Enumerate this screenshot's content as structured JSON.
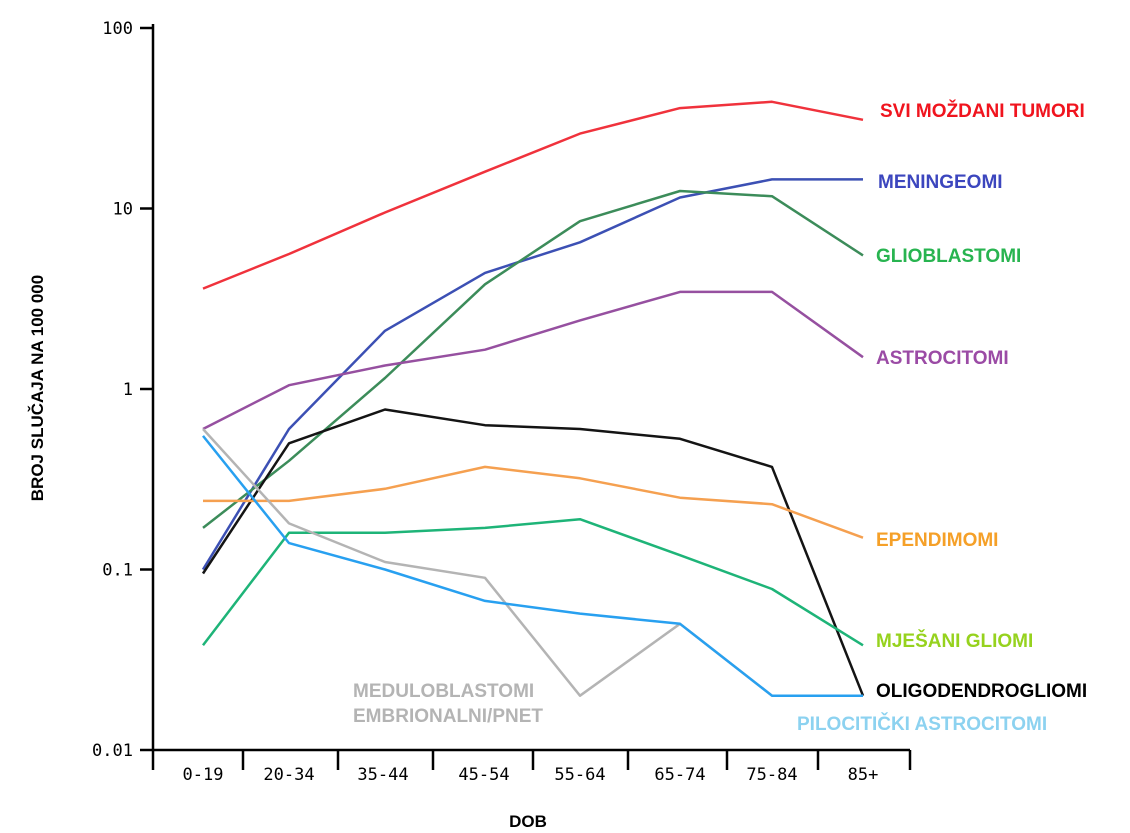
{
  "chart_data": {
    "type": "line",
    "xlabel": "DOB",
    "ylabel": "BROJ SLUČAJA NA 100 000",
    "yscale": "log",
    "ylim": [
      0.01,
      100
    ],
    "yticks": [
      "100",
      "10",
      "1",
      "0.1",
      "0.01"
    ],
    "ytick_values": [
      100,
      10,
      1,
      0.1,
      0.01
    ],
    "categories": [
      "0-19",
      "20-34",
      "35-44",
      "45-54",
      "55-64",
      "65-74",
      "75-84",
      "85+"
    ],
    "grid": false,
    "series": [
      {
        "name": "SVI MOŽDANI TUMORI",
        "color": "#f0323c",
        "label_color": "#f0141e",
        "values": [
          3.6,
          5.6,
          9.5,
          16,
          26,
          36,
          39,
          31
        ]
      },
      {
        "name": "MENINGEOMI",
        "color": "#3c50b4",
        "label_color": "#3c46be",
        "values": [
          0.1,
          0.6,
          2.1,
          4.4,
          6.5,
          11.5,
          14.5,
          14.5
        ]
      },
      {
        "name": "GLIOBLASTOMI",
        "color": "#3c8c5a",
        "label_color": "#28b450",
        "values": [
          0.17,
          0.4,
          1.15,
          3.8,
          8.5,
          12.5,
          11.7,
          5.5
        ]
      },
      {
        "name": "ASTROCITOMI",
        "color": "#9650a0",
        "label_color": "#9b4ba5",
        "values": [
          0.6,
          1.05,
          1.35,
          1.65,
          2.4,
          3.45,
          3.45,
          1.5
        ]
      },
      {
        "name": "OLIGODENDROGLIOMI",
        "color": "#141414",
        "label_color": "#000000",
        "values": [
          0.095,
          0.5,
          0.77,
          0.63,
          0.6,
          0.53,
          0.37,
          0.02
        ]
      },
      {
        "name": "EPENDIMOMI",
        "color": "#f5a050",
        "label_color": "#f5a028",
        "values": [
          0.24,
          0.24,
          0.28,
          0.37,
          0.32,
          0.25,
          0.23,
          0.15
        ]
      },
      {
        "name": "MJEŠANI GLIOMI",
        "color": "#1eb478",
        "label_color": "#96d21e",
        "values": [
          0.038,
          0.16,
          0.16,
          0.17,
          0.19,
          0.12,
          0.078,
          0.038
        ]
      },
      {
        "name": "MEDULOBLASTOMI EMBRIONALNI/PNET",
        "color": "#b4b4b4",
        "label_color": "#b4b4b4",
        "values": [
          0.6,
          0.18,
          0.11,
          0.09,
          0.02,
          0.05,
          0.02,
          0.02
        ]
      },
      {
        "name": "PILOCITIČKI ASTROCITOMI",
        "color": "#28a0f0",
        "label_color": "#8cd2f0",
        "values": [
          0.55,
          0.14,
          0.1,
          0.067,
          0.057,
          0.05,
          0.02,
          0.02
        ]
      }
    ],
    "labels": [
      {
        "series": 0,
        "lines": [
          "SVI MOŽDANI TUMORI"
        ]
      },
      {
        "series": 1,
        "lines": [
          "MENINGEOMI"
        ]
      },
      {
        "series": 2,
        "lines": [
          "GLIOBLASTOMI"
        ]
      },
      {
        "series": 3,
        "lines": [
          "ASTROCITOMI"
        ]
      },
      {
        "series": 5,
        "lines": [
          "EPENDIMOMI"
        ]
      },
      {
        "series": 6,
        "lines": [
          "MJEŠANI GLIOMI"
        ]
      },
      {
        "series": 4,
        "lines": [
          "OLIGODENDROGLIOMI"
        ]
      },
      {
        "series": 7,
        "lines": [
          "MEDULOBLASTOMI",
          "EMBRIONALNI/PNET"
        ]
      },
      {
        "series": 8,
        "lines": [
          "PILOCITIČKI ASTROCITOMI"
        ]
      }
    ]
  }
}
